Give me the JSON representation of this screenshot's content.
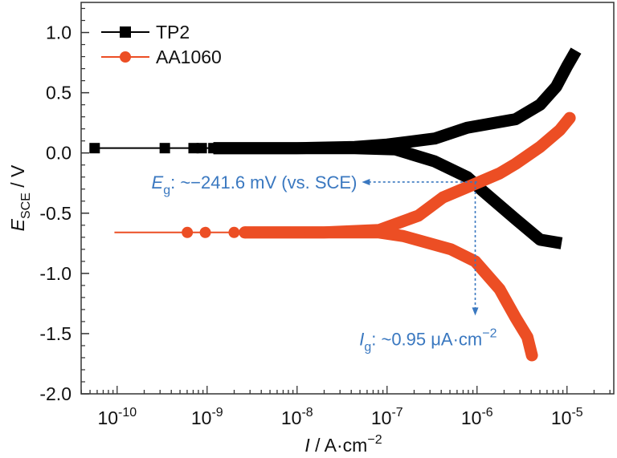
{
  "chart_data": {
    "type": "line",
    "title": "",
    "xlabel": "I / A·cm⁻²",
    "xlabel_parts": {
      "italic": "I",
      "rest": " / A·cm",
      "sup": "−2"
    },
    "ylabel": "E_SCE / V",
    "ylabel_parts": {
      "italic": "E",
      "sub": "SCE",
      "rest": " / V"
    },
    "xscale": "log",
    "xlim_log10": [
      -10.4,
      -4.48
    ],
    "ylim": [
      -2.0,
      1.25
    ],
    "x_ticks": [
      {
        "exp": -10,
        "label_base": "10",
        "label_exp": "-10"
      },
      {
        "exp": -9,
        "label_base": "10",
        "label_exp": "-9"
      },
      {
        "exp": -8,
        "label_base": "10",
        "label_exp": "-8"
      },
      {
        "exp": -7,
        "label_base": "10",
        "label_exp": "-7"
      },
      {
        "exp": -6,
        "label_base": "10",
        "label_exp": "-6"
      },
      {
        "exp": -5,
        "label_base": "10",
        "label_exp": "-5"
      }
    ],
    "y_ticks": [
      {
        "value": 1.0,
        "label": "1.0"
      },
      {
        "value": 0.5,
        "label": "0.5"
      },
      {
        "value": 0.0,
        "label": "0.0"
      },
      {
        "value": -0.5,
        "label": "-0.5"
      },
      {
        "value": -1.0,
        "label": "-1.0"
      },
      {
        "value": -1.5,
        "label": "-1.5"
      },
      {
        "value": -2.0,
        "label": "-2.0"
      }
    ],
    "y_minor_step": 0.1,
    "grid": false,
    "legend": {
      "placement": "top-left"
    },
    "series": [
      {
        "name": "TP2",
        "color": "#000000",
        "marker": "square",
        "flat_line": {
          "log10_I_start": -10.25,
          "E": 0.04
        },
        "marker_log10_I": [
          -10.25,
          -9.47,
          -9.15,
          -9.06,
          -8.93,
          -8.85,
          -8.78,
          -8.7,
          -8.62,
          -8.55,
          -8.48,
          -8.4
        ],
        "anodic_branch": [
          {
            "log10_I": -8.93,
            "E": 0.04
          },
          {
            "log10_I": -8.0,
            "E": 0.04
          },
          {
            "log10_I": -7.36,
            "E": 0.05
          },
          {
            "log10_I": -7.0,
            "E": 0.07
          },
          {
            "log10_I": -6.47,
            "E": 0.12
          },
          {
            "log10_I": -6.11,
            "E": 0.21
          },
          {
            "log10_I": -5.57,
            "E": 0.28
          },
          {
            "log10_I": -5.3,
            "E": 0.4
          },
          {
            "log10_I": -5.12,
            "E": 0.55
          },
          {
            "log10_I": -5.0,
            "E": 0.72
          },
          {
            "log10_I": -4.9,
            "E": 0.85
          }
        ],
        "cathodic_branch": [
          {
            "log10_I": -8.93,
            "E": 0.04
          },
          {
            "log10_I": -8.0,
            "E": 0.04
          },
          {
            "log10_I": -7.36,
            "E": 0.04
          },
          {
            "log10_I": -6.91,
            "E": 0.03
          },
          {
            "log10_I": -6.47,
            "E": -0.07
          },
          {
            "log10_I": -6.11,
            "E": -0.2
          },
          {
            "log10_I": -5.93,
            "E": -0.32
          },
          {
            "log10_I": -5.57,
            "E": -0.55
          },
          {
            "log10_I": -5.3,
            "E": -0.72
          },
          {
            "log10_I": -5.06,
            "E": -0.75
          }
        ]
      },
      {
        "name": "AA1060",
        "color": "#ec4e24",
        "marker": "circle",
        "flat_line": {
          "log10_I_start": -10.03,
          "E": -0.66
        },
        "marker_log10_I": [
          -9.22,
          -9.02,
          -8.7,
          -8.58,
          -8.45,
          -8.36,
          -8.27,
          -8.18,
          -8.1,
          -8.02,
          -7.94,
          -7.86,
          -7.78,
          -7.7,
          -7.62
        ],
        "anodic_branch": [
          {
            "log10_I": -8.58,
            "E": -0.66
          },
          {
            "log10_I": -7.7,
            "E": -0.66
          },
          {
            "log10_I": -7.09,
            "E": -0.64
          },
          {
            "log10_I": -6.65,
            "E": -0.52
          },
          {
            "log10_I": -6.38,
            "E": -0.37
          },
          {
            "log10_I": -6.0,
            "E": -0.25
          },
          {
            "log10_I": -5.75,
            "E": -0.17
          },
          {
            "log10_I": -5.57,
            "E": -0.09
          },
          {
            "log10_I": -5.3,
            "E": 0.05
          },
          {
            "log10_I": -5.08,
            "E": 0.19
          },
          {
            "log10_I": -4.97,
            "E": 0.29
          }
        ],
        "cathodic_branch": [
          {
            "log10_I": -8.58,
            "E": -0.66
          },
          {
            "log10_I": -7.7,
            "E": -0.66
          },
          {
            "log10_I": -7.09,
            "E": -0.66
          },
          {
            "log10_I": -6.82,
            "E": -0.69
          },
          {
            "log10_I": -6.29,
            "E": -0.8
          },
          {
            "log10_I": -6.02,
            "E": -0.9
          },
          {
            "log10_I": -5.75,
            "E": -1.13
          },
          {
            "log10_I": -5.57,
            "E": -1.37
          },
          {
            "log10_I": -5.44,
            "E": -1.53
          },
          {
            "log10_I": -5.39,
            "E": -1.68
          }
        ]
      }
    ],
    "annotations": [
      {
        "name": "Eg",
        "symbol": "E",
        "subscript": "g",
        "text": ": ~−241.6 mV (vs. SCE)",
        "color": "#3a78c0",
        "arrow": "horizontal-left",
        "from": {
          "log10_I": -6.0,
          "E": -0.2416
        },
        "to_log10_I": -7.28
      },
      {
        "name": "Ig",
        "symbol": "I",
        "subscript": "g",
        "text": ": ~0.95 μA·cm",
        "sup": "−2",
        "color": "#3a78c0",
        "arrow": "vertical-down",
        "from": {
          "log10_I": -6.02,
          "E": -0.2416
        },
        "to_E": -1.35
      }
    ]
  }
}
